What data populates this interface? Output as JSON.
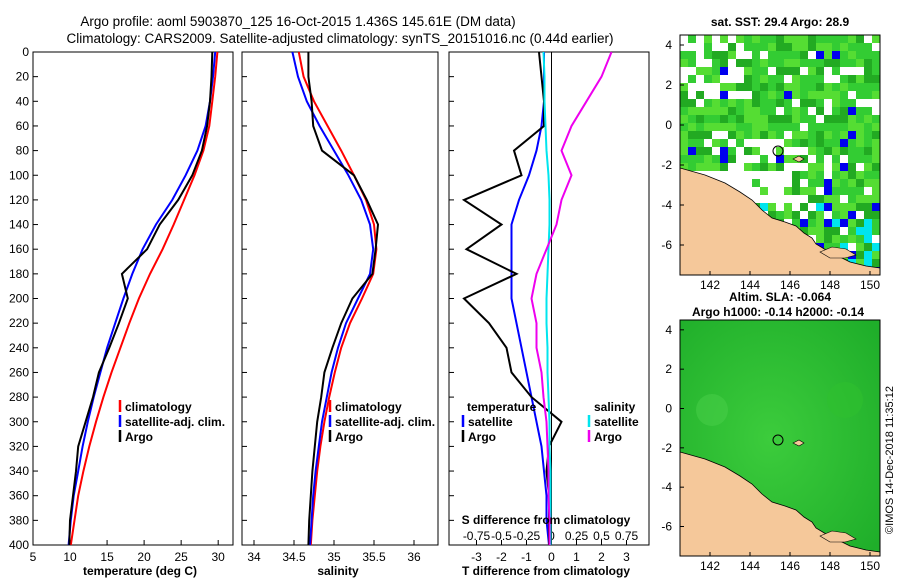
{
  "figure": {
    "title_line1": "Argo profile: aoml 5903870_125 16-Oct-2015 1.436S 145.61E (DM data)",
    "title_line2": "Climatology: CARS2009. Satellite-adjusted climatology: synTS_20151016.nc (0.44d earlier)",
    "credit": "©IMOS 14-Dec-2018 11:35:12"
  },
  "colors": {
    "climatology": "#ff0000",
    "satellite": "#0000ff",
    "argo": "#000000",
    "salinity_satellite": "#00e5ee",
    "salinity_argo": "#ee00ee",
    "land": "#f5c89a",
    "sst_green": "#33cc33",
    "sla_green": "#22bb22"
  },
  "chart_data": [
    {
      "type": "line",
      "name": "temperature",
      "xlabel": "temperature (deg C)",
      "ylabel": "",
      "xlim": [
        5,
        32
      ],
      "ylim": [
        400,
        0
      ],
      "xticks": [
        5,
        10,
        15,
        20,
        25,
        30
      ],
      "yticks": [
        0,
        20,
        40,
        60,
        80,
        100,
        120,
        140,
        160,
        180,
        200,
        220,
        240,
        260,
        280,
        300,
        320,
        340,
        360,
        380,
        400
      ],
      "legend": [
        "climatology",
        "satellite-adj. clim.",
        "Argo"
      ],
      "series": [
        {
          "name": "climatology",
          "color": "#ff0000",
          "x": [
            29.9,
            29.6,
            29.2,
            28.8,
            28.0,
            26.8,
            25.4,
            24.0,
            22.5,
            20.8,
            19.3,
            18.0,
            16.8,
            15.6,
            14.5,
            13.5,
            12.6,
            11.8,
            11.1,
            10.6,
            10.1
          ],
          "y": [
            0,
            20,
            40,
            60,
            80,
            100,
            120,
            140,
            160,
            180,
            200,
            220,
            240,
            260,
            280,
            300,
            320,
            340,
            360,
            380,
            400
          ]
        },
        {
          "name": "satellite-adj. clim.",
          "color": "#0000ff",
          "x": [
            29.6,
            29.3,
            28.9,
            28.3,
            27.2,
            25.6,
            23.8,
            21.6,
            19.8,
            18.4,
            17.2,
            16.1,
            15.0,
            14.1,
            13.2,
            12.4,
            11.7,
            11.1,
            10.5,
            10.1,
            9.8
          ],
          "y": [
            0,
            20,
            40,
            60,
            80,
            100,
            120,
            140,
            160,
            180,
            200,
            220,
            240,
            260,
            280,
            300,
            320,
            340,
            360,
            380,
            400
          ]
        },
        {
          "name": "Argo",
          "color": "#000000",
          "x": [
            29.2,
            29.1,
            28.9,
            28.5,
            27.8,
            26.5,
            24.6,
            22.1,
            20.4,
            17.0,
            17.8,
            16.6,
            15.3,
            13.9,
            13.1,
            12.1,
            11.1,
            10.8,
            10.4,
            10.0,
            9.9
          ],
          "y": [
            0,
            20,
            40,
            60,
            80,
            100,
            120,
            140,
            160,
            180,
            200,
            220,
            240,
            260,
            280,
            300,
            320,
            340,
            360,
            380,
            400
          ]
        }
      ]
    },
    {
      "type": "line",
      "name": "salinity",
      "xlabel": "salinity",
      "xlim": [
        33.85,
        36.3
      ],
      "ylim": [
        400,
        0
      ],
      "xticks": [
        34,
        34.5,
        35,
        35.5,
        36
      ],
      "legend": [
        "climatology",
        "satellite-adj. clim.",
        "Argo"
      ],
      "series": [
        {
          "name": "climatology",
          "color": "#ff0000",
          "x": [
            34.56,
            34.62,
            34.75,
            34.92,
            35.09,
            35.25,
            35.4,
            35.5,
            35.53,
            35.49,
            35.35,
            35.2,
            35.09,
            35.01,
            34.94,
            34.88,
            34.83,
            34.79,
            34.76,
            34.73,
            34.71
          ],
          "y": [
            0,
            20,
            40,
            60,
            80,
            100,
            120,
            140,
            160,
            180,
            200,
            220,
            240,
            260,
            280,
            300,
            320,
            340,
            360,
            380,
            400
          ]
        },
        {
          "name": "satellite-adj. clim.",
          "color": "#0000ff",
          "x": [
            34.48,
            34.55,
            34.66,
            34.82,
            35.0,
            35.18,
            35.34,
            35.45,
            35.49,
            35.45,
            35.3,
            35.15,
            35.05,
            34.97,
            34.91,
            34.85,
            34.81,
            34.77,
            34.74,
            34.72,
            34.7
          ],
          "y": [
            0,
            20,
            40,
            60,
            80,
            100,
            120,
            140,
            160,
            180,
            200,
            220,
            240,
            260,
            280,
            300,
            320,
            340,
            360,
            380,
            400
          ]
        },
        {
          "name": "Argo",
          "color": "#000000",
          "x": [
            34.68,
            34.68,
            34.72,
            34.74,
            34.85,
            35.25,
            35.41,
            35.55,
            35.52,
            35.48,
            35.23,
            35.09,
            34.98,
            34.88,
            34.84,
            34.79,
            34.76,
            34.73,
            34.71,
            34.69,
            34.68
          ],
          "y": [
            0,
            20,
            40,
            60,
            80,
            100,
            120,
            140,
            160,
            180,
            200,
            220,
            240,
            260,
            280,
            300,
            320,
            340,
            360,
            380,
            400
          ]
        }
      ]
    },
    {
      "type": "line",
      "name": "difference",
      "xlabel": "T difference from climatology",
      "top_label": "S difference from climatology",
      "xlim": [
        -4.1,
        3.9
      ],
      "ylim": [
        400,
        0
      ],
      "xticks": [
        -3,
        -2,
        -1,
        0,
        1,
        2,
        3
      ],
      "s_xticks": [
        "-0.75",
        "-0.5",
        "-0.25",
        "0",
        "0.25",
        "0.5",
        "0.75"
      ],
      "legend_temperature": {
        "title": "temperature",
        "items": [
          "satellite",
          "Argo"
        ]
      },
      "legend_salinity": {
        "title": "salinity",
        "items": [
          "satellite",
          "Argo"
        ]
      },
      "series": [
        {
          "name": "T satellite",
          "color": "#0000ff",
          "x": [
            -0.3,
            -0.3,
            -0.3,
            -0.4,
            -0.6,
            -0.9,
            -1.3,
            -1.6,
            -1.6,
            -1.6,
            -1.6,
            -1.4,
            -1.2,
            -1.0,
            -0.8,
            -0.6,
            -0.4,
            -0.3,
            -0.2,
            -0.2,
            -0.1
          ],
          "y": [
            0,
            20,
            40,
            60,
            80,
            100,
            120,
            140,
            160,
            180,
            200,
            220,
            240,
            260,
            280,
            300,
            320,
            340,
            360,
            380,
            400
          ]
        },
        {
          "name": "T Argo",
          "color": "#000000",
          "x": [
            -0.5,
            -0.4,
            -0.3,
            -0.3,
            -1.5,
            -1.2,
            -3.5,
            -2.0,
            -3.4,
            -1.4,
            -3.5,
            -2.5,
            -1.8,
            -1.6,
            -0.8,
            0.4,
            -0.1,
            -0.2,
            -0.1,
            -0.1,
            -0.1
          ],
          "y": [
            0,
            20,
            40,
            60,
            80,
            100,
            120,
            140,
            160,
            180,
            200,
            220,
            240,
            260,
            280,
            300,
            320,
            340,
            360,
            380,
            400
          ]
        },
        {
          "name": "S satellite",
          "color": "#00e5ee",
          "x": [
            -0.08,
            -0.07,
            -0.07,
            -0.06,
            -0.05,
            -0.03,
            -0.02,
            -0.02,
            -0.03,
            -0.04,
            -0.05,
            -0.05,
            -0.04,
            -0.04,
            -0.03,
            -0.02,
            -0.02,
            -0.01,
            -0.01,
            -0.01,
            -0.01
          ],
          "y": [
            0,
            20,
            40,
            60,
            80,
            100,
            120,
            140,
            160,
            180,
            200,
            220,
            240,
            260,
            280,
            300,
            320,
            340,
            360,
            380,
            400
          ]
        },
        {
          "name": "S Argo",
          "color": "#ee00ee",
          "x": [
            0.6,
            0.5,
            0.35,
            0.2,
            0.1,
            0.2,
            0.1,
            0.05,
            -0.05,
            -0.15,
            -0.2,
            -0.15,
            -0.15,
            -0.1,
            -0.08,
            -0.05,
            -0.04,
            -0.03,
            -0.03,
            -0.02,
            -0.02
          ],
          "y": [
            0,
            20,
            40,
            60,
            80,
            100,
            120,
            140,
            160,
            180,
            200,
            220,
            240,
            260,
            280,
            300,
            320,
            340,
            360,
            380,
            400
          ]
        }
      ]
    },
    {
      "type": "heatmap",
      "name": "sst_map",
      "title": "sat. SST: 29.4 Argo: 28.9",
      "xlim": [
        140.5,
        150.5
      ],
      "ylim": [
        -7.5,
        4.5
      ],
      "xticks": [
        142,
        144,
        146,
        148,
        150
      ],
      "yticks": [
        -6,
        -4,
        -2,
        0,
        2,
        4
      ],
      "marker": {
        "lon": 145.61,
        "lat": -1.436
      }
    },
    {
      "type": "heatmap",
      "name": "sla_map",
      "title_line1": "Altim. SLA: -0.064",
      "title_line2": "Argo h1000: -0.14 h2000: -0.14",
      "xlim": [
        140.5,
        150.5
      ],
      "ylim": [
        -7.5,
        4.5
      ],
      "xticks": [
        142,
        144,
        146,
        148,
        150
      ],
      "yticks": [
        -6,
        -4,
        -2,
        0,
        2,
        4
      ],
      "marker": {
        "lon": 145.61,
        "lat": -1.436
      }
    }
  ]
}
